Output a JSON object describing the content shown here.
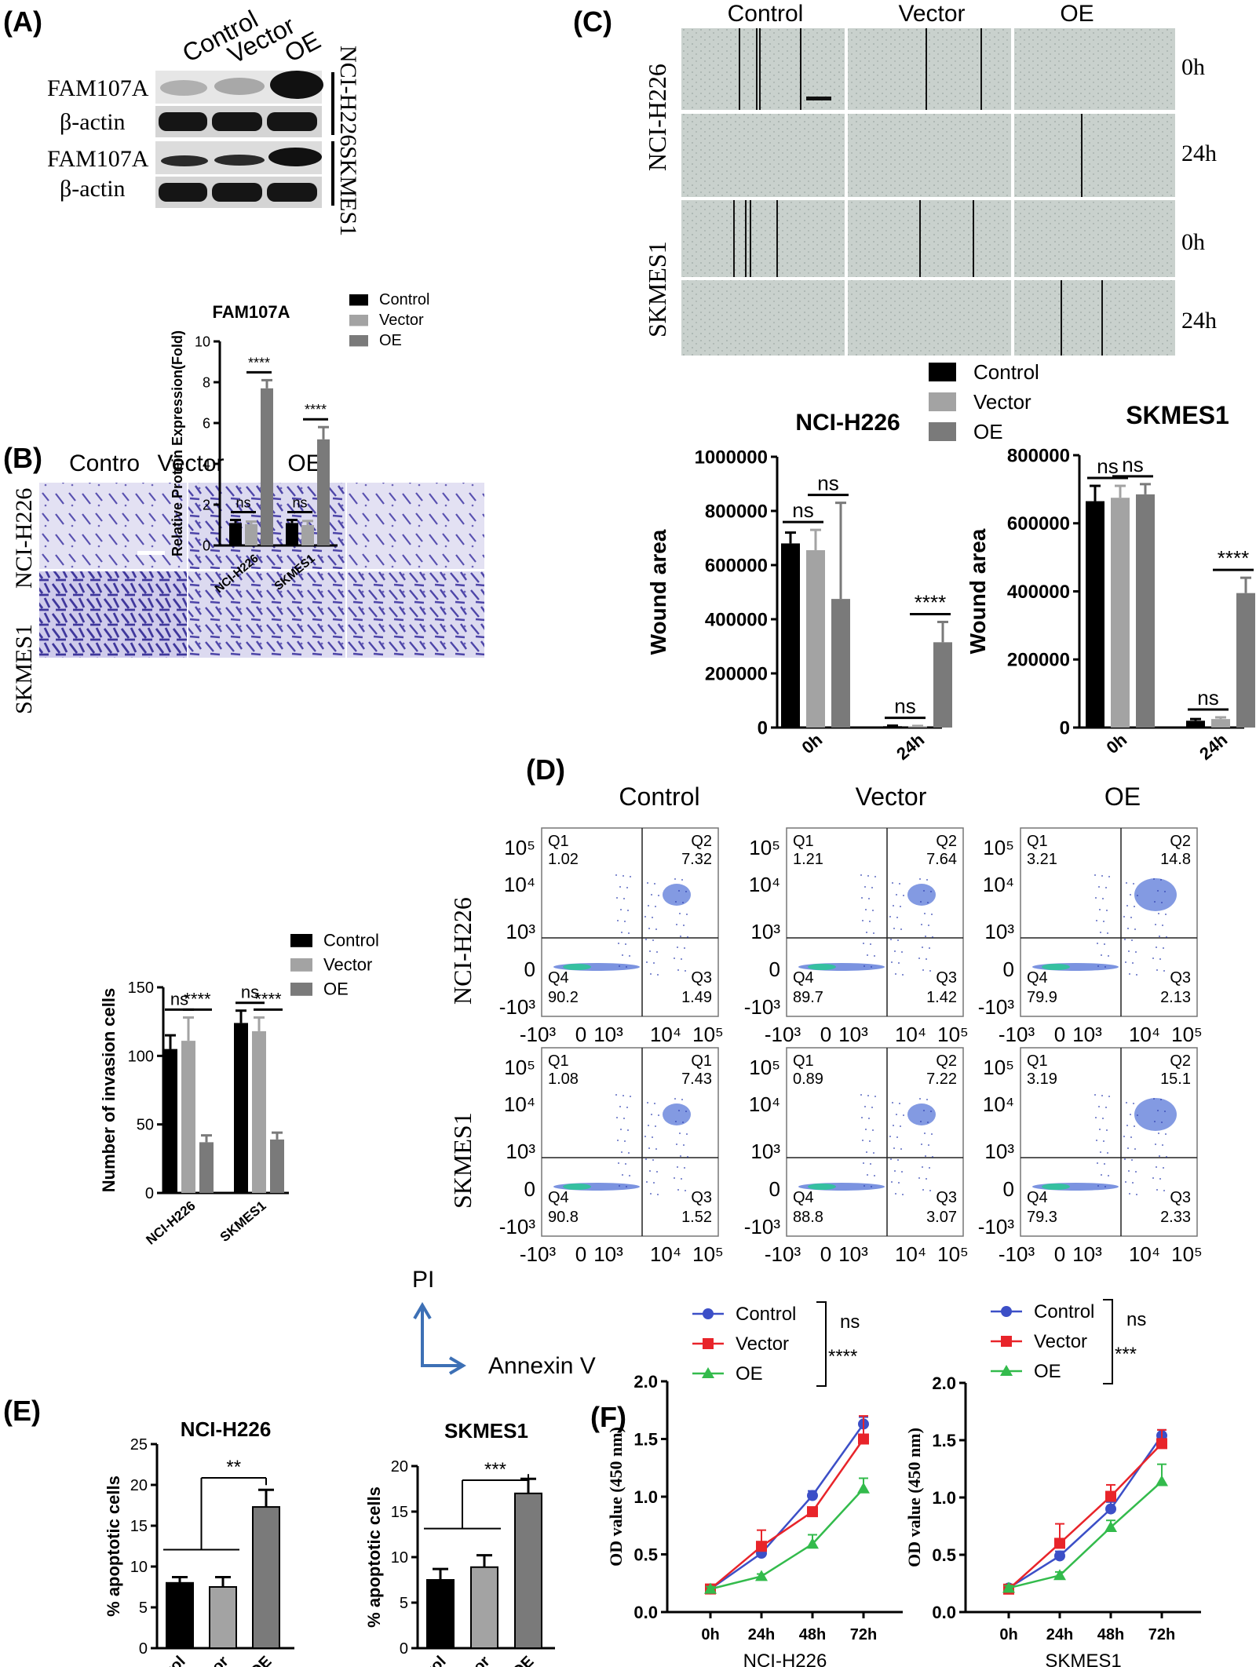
{
  "colors": {
    "control": "#000000",
    "vector": "#a3a3a3",
    "oe": "#7a7a7a",
    "line_control": "#3c4fc7",
    "line_vector": "#e8242a",
    "line_oe": "#33bb4c",
    "arrow": "#3d70b5",
    "crystal": "#6b63b8"
  },
  "panels": {
    "a": {
      "label": "(A)",
      "header": [
        "Control",
        "Vector",
        "OE"
      ],
      "rows": [
        "FAM107A",
        "β-actin",
        "FAM107A",
        "β-actin"
      ],
      "cells": [
        "NCI-H226",
        "SKMES1"
      ]
    },
    "b": {
      "label": "(B)",
      "header": [
        "Contro",
        "Vector",
        "OE"
      ],
      "rows": [
        "NCI-H226",
        "SKMES1"
      ]
    },
    "c": {
      "label": "(C)",
      "header": [
        "Control",
        "Vector",
        "OE"
      ],
      "rows": [
        "NCI-H226",
        "SKMES1"
      ],
      "times": [
        "0h",
        "24h",
        "0h",
        "24h"
      ],
      "legend": [
        "Control",
        "Vector",
        "OE"
      ]
    },
    "d": {
      "label": "(D)",
      "header": [
        "Control",
        "Vector",
        "OE"
      ],
      "rows": [
        "NCI-H226",
        "SKMES1"
      ],
      "ylab": "PI",
      "xlab": "Annexin V",
      "yticks": [
        "10⁵",
        "10⁴",
        "10³",
        "0",
        "-10³"
      ],
      "xticks": [
        "-10³",
        "0",
        "10³",
        "10⁴",
        "10⁵"
      ],
      "plots": [
        {
          "q": [
            "Q1",
            "Q2",
            "Q4",
            "Q3"
          ],
          "v": [
            "1.02",
            "7.32",
            "90.2",
            "1.49"
          ]
        },
        {
          "q": [
            "Q1",
            "Q2",
            "Q4",
            "Q3"
          ],
          "v": [
            "1.21",
            "7.64",
            "89.7",
            "1.42"
          ]
        },
        {
          "q": [
            "Q1",
            "Q2",
            "Q4",
            "Q3"
          ],
          "v": [
            "3.21",
            "14.8",
            "79.9",
            "2.13"
          ]
        },
        {
          "q": [
            "Q1",
            "Q1",
            "Q4",
            "Q3"
          ],
          "v": [
            "1.08",
            "7.43",
            "90.8",
            "1.52"
          ]
        },
        {
          "q": [
            "Q1",
            "Q2",
            "Q4",
            "Q3"
          ],
          "v": [
            "0.89",
            "7.22",
            "88.8",
            "3.07"
          ]
        },
        {
          "q": [
            "Q1",
            "Q2",
            "Q4",
            "Q3"
          ],
          "v": [
            "3.19",
            "15.1",
            "79.3",
            "2.33"
          ]
        }
      ]
    },
    "e": {
      "label": "(E)"
    },
    "f": {
      "label": "(F)"
    }
  },
  "chart_data": [
    {
      "id": "a",
      "type": "bar",
      "title": "FAM107A",
      "ylabel": "Relative Protein Expression(Fold)",
      "categories": [
        "NCI-H226",
        "SKMES1"
      ],
      "ylim": [
        0,
        10
      ],
      "yticks": [
        "0",
        "2",
        "4",
        "6",
        "8",
        "10"
      ],
      "legend": [
        "Control",
        "Vector",
        "OE"
      ],
      "series": [
        {
          "name": "Control",
          "values": [
            1.1,
            1.1
          ],
          "err": [
            0.15,
            0.15
          ]
        },
        {
          "name": "Vector",
          "values": [
            1.05,
            1.0
          ],
          "err": [
            0.12,
            0.2
          ]
        },
        {
          "name": "OE",
          "values": [
            7.7,
            5.2
          ],
          "err": [
            0.4,
            0.6
          ]
        }
      ],
      "annotations": [
        {
          "cat": 0,
          "pair": [
            0,
            1
          ],
          "text": "ns"
        },
        {
          "cat": 0,
          "pair": [
            1,
            2
          ],
          "text": "****"
        },
        {
          "cat": 1,
          "pair": [
            0,
            1
          ],
          "text": "ns"
        },
        {
          "cat": 1,
          "pair": [
            1,
            2
          ],
          "text": "****"
        }
      ]
    },
    {
      "id": "b",
      "type": "bar",
      "ylabel": "Number of invasion cells",
      "categories": [
        "NCI-H226",
        "SKMES1"
      ],
      "ylim": [
        0,
        150
      ],
      "yticks": [
        "0",
        "50",
        "100",
        "150"
      ],
      "legend": [
        "Control",
        "Vector",
        "OE"
      ],
      "series": [
        {
          "name": "Control",
          "values": [
            105,
            124
          ],
          "err": [
            10,
            9
          ]
        },
        {
          "name": "Vector",
          "values": [
            111,
            118
          ],
          "err": [
            17,
            10
          ]
        },
        {
          "name": "OE",
          "values": [
            37,
            39
          ],
          "err": [
            5,
            5
          ]
        }
      ],
      "annotations": [
        {
          "cat": 0,
          "pair": [
            0,
            1
          ],
          "text": "ns"
        },
        {
          "cat": 0,
          "pair": [
            1,
            2
          ],
          "text": "****"
        },
        {
          "cat": 1,
          "pair": [
            0,
            1
          ],
          "text": "ns"
        },
        {
          "cat": 1,
          "pair": [
            1,
            2
          ],
          "text": "****"
        }
      ]
    },
    {
      "id": "c1",
      "type": "bar",
      "title": "NCI-H226",
      "ylabel": "Wound area",
      "categories": [
        "0h",
        "24h"
      ],
      "ylim": [
        0,
        1000000
      ],
      "yticks": [
        "0",
        "200000",
        "400000",
        "600000",
        "800000",
        "1000000"
      ],
      "series": [
        {
          "name": "Control",
          "values": [
            680000,
            5000
          ],
          "err": [
            40000,
            2000
          ]
        },
        {
          "name": "Vector",
          "values": [
            655000,
            4000
          ],
          "err": [
            75000,
            2000
          ]
        },
        {
          "name": "OE",
          "values": [
            475000,
            315000
          ],
          "err": [
            355000,
            75000
          ]
        }
      ],
      "annotations": [
        {
          "cat": 0,
          "pair": [
            0,
            1
          ],
          "text": "ns"
        },
        {
          "cat": 0,
          "pair": [
            1,
            2
          ],
          "text": "ns"
        },
        {
          "cat": 1,
          "pair": [
            0,
            1
          ],
          "text": "ns"
        },
        {
          "cat": 1,
          "pair": [
            1,
            2
          ],
          "text": "****"
        }
      ]
    },
    {
      "id": "c2",
      "type": "bar",
      "title": "SKMES1",
      "ylabel": "Wound area",
      "categories": [
        "0h",
        "24h"
      ],
      "ylim": [
        0,
        800000
      ],
      "yticks": [
        "0",
        "200000",
        "400000",
        "600000",
        "800000"
      ],
      "series": [
        {
          "name": "Control",
          "values": [
            665000,
            20000
          ],
          "err": [
            45000,
            5000
          ]
        },
        {
          "name": "Vector",
          "values": [
            675000,
            25000
          ],
          "err": [
            35000,
            5000
          ]
        },
        {
          "name": "OE",
          "values": [
            685000,
            395000
          ],
          "err": [
            30000,
            45000
          ]
        }
      ],
      "annotations": [
        {
          "cat": 0,
          "pair": [
            0,
            1
          ],
          "text": "ns"
        },
        {
          "cat": 0,
          "pair": [
            1,
            2
          ],
          "text": "ns"
        },
        {
          "cat": 1,
          "pair": [
            0,
            1
          ],
          "text": "ns"
        },
        {
          "cat": 1,
          "pair": [
            1,
            2
          ],
          "text": "****"
        }
      ]
    },
    {
      "id": "e1",
      "type": "bar",
      "title": "NCI-H226",
      "ylabel": "% apoptotic cells",
      "categories": [
        "Control",
        "Vector",
        "OE"
      ],
      "ylim": [
        0,
        25
      ],
      "yticks": [
        "0",
        "5",
        "10",
        "15",
        "20",
        "25"
      ],
      "values": [
        8.0,
        7.5,
        17.3
      ],
      "err": [
        0.7,
        1.2,
        2.1
      ],
      "sig": "**"
    },
    {
      "id": "e2",
      "type": "bar",
      "title": "SKMES1",
      "ylabel": "% apoptotic cells",
      "categories": [
        "Control",
        "Vector",
        "OE"
      ],
      "ylim": [
        0,
        20
      ],
      "yticks": [
        "0",
        "5",
        "10",
        "15",
        "20"
      ],
      "values": [
        7.5,
        8.9,
        17.0
      ],
      "err": [
        1.2,
        1.3,
        1.6
      ],
      "sig": "***"
    },
    {
      "id": "f1",
      "type": "line",
      "xlabel": "NCI-H226",
      "ylabel": "OD value (450 nm)",
      "x": [
        "0h",
        "24h",
        "48h",
        "72h"
      ],
      "ylim": [
        0,
        2.0
      ],
      "yticks": [
        "0.0",
        "0.5",
        "1.0",
        "1.5",
        "2.0"
      ],
      "series": [
        {
          "name": "Control",
          "values": [
            0.2,
            0.51,
            1.01,
            1.63
          ],
          "err": [
            0.02,
            0.05,
            0.04,
            0.06
          ]
        },
        {
          "name": "Vector",
          "values": [
            0.2,
            0.57,
            0.87,
            1.5
          ],
          "err": [
            0.02,
            0.14,
            0.03,
            0.2
          ]
        },
        {
          "name": "OE",
          "values": [
            0.2,
            0.31,
            0.59,
            1.07
          ],
          "err": [
            0.02,
            0.02,
            0.08,
            0.09
          ]
        }
      ],
      "sig": [
        "ns",
        "****"
      ]
    },
    {
      "id": "f2",
      "type": "line",
      "xlabel": "SKMES1",
      "ylabel": "OD value (450 nm)",
      "x": [
        "0h",
        "24h",
        "48h",
        "72h"
      ],
      "ylim": [
        0,
        2.0
      ],
      "yticks": [
        "0.0",
        "0.5",
        "1.0",
        "1.5",
        "2.0"
      ],
      "series": [
        {
          "name": "Control",
          "values": [
            0.21,
            0.49,
            0.9,
            1.54
          ],
          "err": [
            0.02,
            0.04,
            0.06,
            0.05
          ]
        },
        {
          "name": "Vector",
          "values": [
            0.2,
            0.6,
            1.01,
            1.47
          ],
          "err": [
            0.02,
            0.17,
            0.1,
            0.12
          ]
        },
        {
          "name": "OE",
          "values": [
            0.21,
            0.32,
            0.74,
            1.14
          ],
          "err": [
            0.02,
            0.03,
            0.06,
            0.15
          ]
        }
      ],
      "sig": [
        "ns",
        "***"
      ]
    }
  ]
}
